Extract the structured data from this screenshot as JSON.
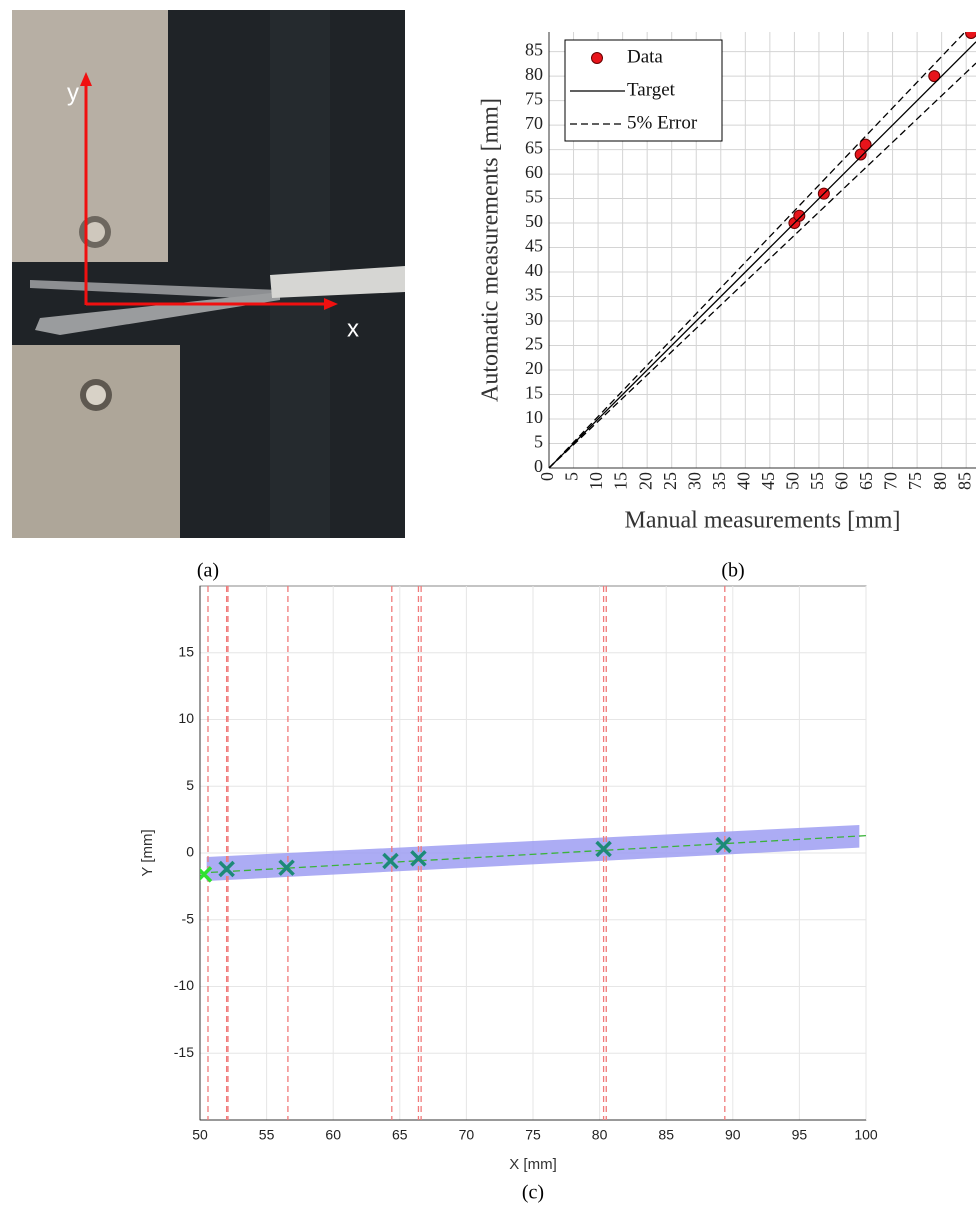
{
  "photo": {
    "y_label": "y",
    "x_label": "x"
  },
  "panel_labels": [
    "(a)",
    "(b)",
    "(c)"
  ],
  "chart_data": [
    {
      "type": "scatter",
      "xlabel": "Manual measurements [mm]",
      "ylabel": "Automatic measurements [mm]",
      "xlim": [
        0,
        87
      ],
      "ylim": [
        0,
        89
      ],
      "xticks": [
        0,
        5,
        10,
        15,
        20,
        25,
        30,
        35,
        40,
        45,
        50,
        55,
        60,
        65,
        70,
        75,
        80,
        85
      ],
      "yticks": [
        0,
        5,
        10,
        15,
        20,
        25,
        30,
        35,
        40,
        45,
        50,
        55,
        60,
        65,
        70,
        75,
        80,
        85
      ],
      "grid": true,
      "legend": "upper left",
      "series": [
        {
          "name": "Data",
          "color": "#e8141b",
          "mode": "markers",
          "x": [
            50,
            51,
            56,
            63.5,
            64.5,
            78.5,
            86
          ],
          "values": [
            50,
            51.5,
            56,
            64,
            66,
            80,
            88.8
          ]
        },
        {
          "name": "Target",
          "color": "#000000",
          "mode": "line",
          "x": [
            0,
            87
          ],
          "values": [
            0,
            87
          ]
        },
        {
          "name": "5% Error",
          "color": "#000000",
          "mode": "dashed",
          "x": [
            0,
            87
          ],
          "values": [
            0,
            91.35
          ]
        },
        {
          "color": "#000000",
          "mode": "dashed",
          "x": [
            0,
            87
          ],
          "values": [
            0,
            82.65
          ]
        }
      ]
    },
    {
      "type": "line",
      "xlabel": "X [mm]",
      "ylabel": "Y [mm]",
      "xlim": [
        50,
        100
      ],
      "ylim": [
        -20,
        20
      ],
      "xticks": [
        50,
        55,
        60,
        65,
        70,
        75,
        80,
        85,
        90,
        95,
        100
      ],
      "yticks": [
        -15,
        -10,
        -5,
        0,
        5,
        10,
        15
      ],
      "grid": true,
      "band": {
        "color": "#9d9df2",
        "x": [
          50.5,
          99.5
        ],
        "lower": [
          -2.1,
          0.4
        ],
        "upper": [
          -0.3,
          2.1
        ]
      },
      "vlines": {
        "color": "#f07a7a",
        "x": [
          50.6,
          52,
          52.1,
          56.6,
          64.4,
          66.4,
          66.6,
          80.3,
          80.5,
          89.4
        ]
      },
      "series": [
        {
          "color": "#3bb33b",
          "mode": "dashed",
          "x": [
            50,
            100
          ],
          "values": [
            -1.5,
            1.3
          ]
        },
        {
          "color": "#1d8a78",
          "mode": "cross",
          "x": [
            50.3,
            52,
            56.5,
            64.3,
            66.4,
            80.3,
            89.3
          ],
          "values": [
            -1.6,
            -1.2,
            -1.1,
            -0.6,
            -0.4,
            0.3,
            0.6
          ]
        }
      ]
    }
  ]
}
